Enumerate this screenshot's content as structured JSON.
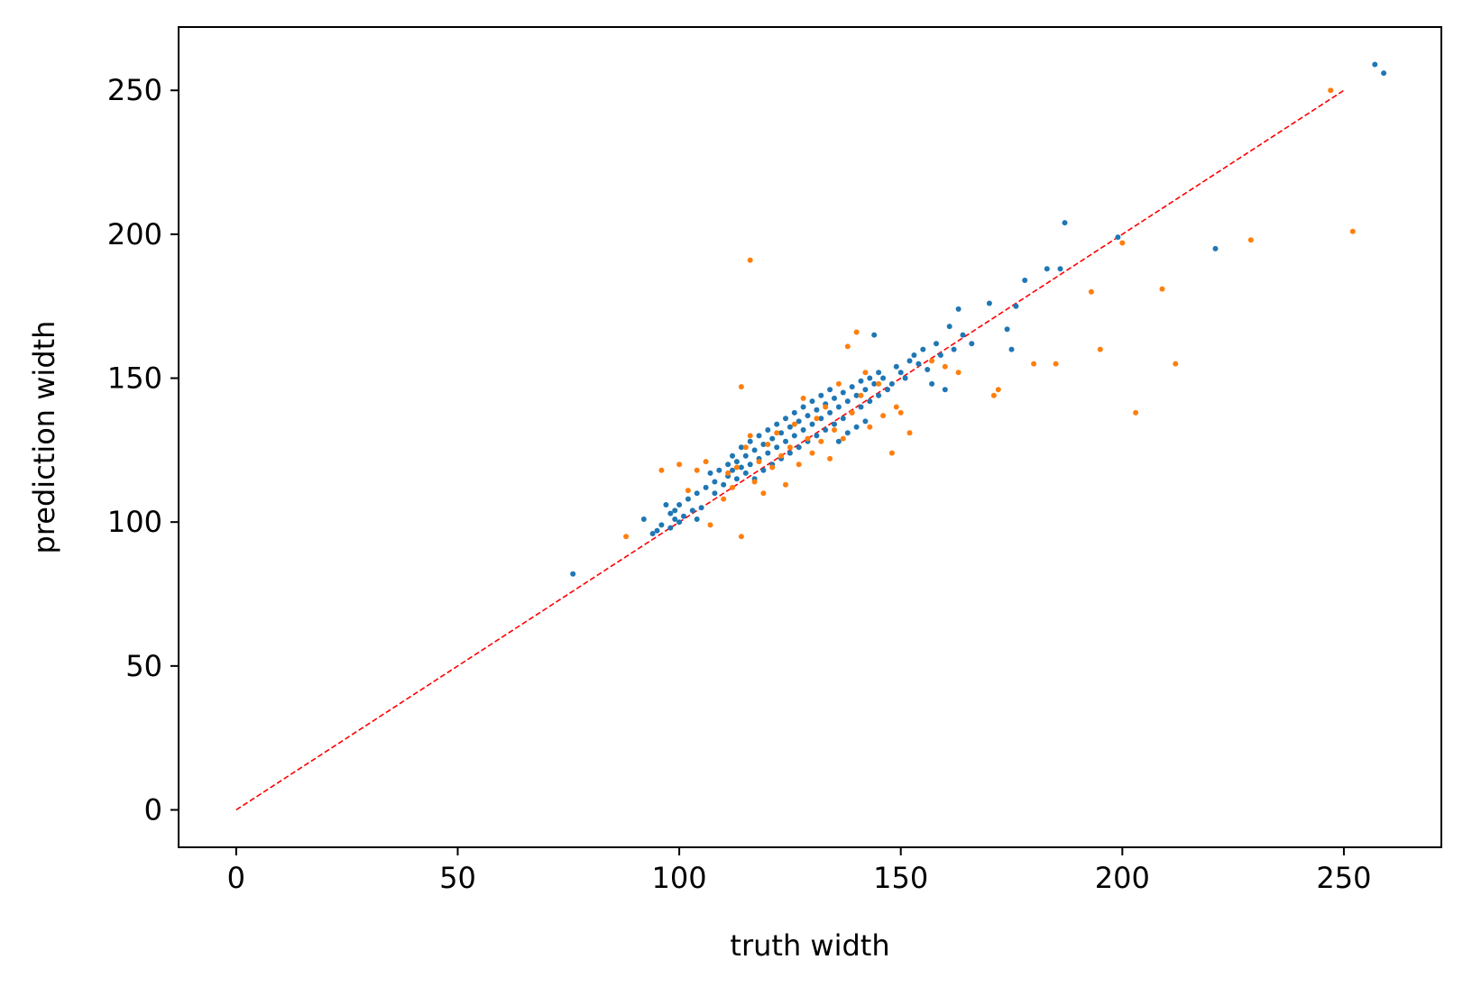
{
  "chart_data": {
    "type": "scatter",
    "title": "",
    "xlabel": "truth width",
    "ylabel": "prediction width",
    "xlim": [
      -13,
      272
    ],
    "ylim": [
      -13,
      272
    ],
    "xticks": [
      0,
      50,
      100,
      150,
      200,
      250
    ],
    "yticks": [
      0,
      50,
      100,
      150,
      200,
      250
    ],
    "grid": false,
    "legend": "none",
    "reference_line": {
      "x": [
        0,
        250
      ],
      "y": [
        0,
        250
      ],
      "color": "#ff0000",
      "style": "dashed"
    },
    "series": [
      {
        "color": "#1f77b4",
        "points": [
          [
            76,
            82
          ],
          [
            92,
            101
          ],
          [
            94,
            96
          ],
          [
            95,
            97
          ],
          [
            96,
            99
          ],
          [
            97,
            106
          ],
          [
            98,
            98
          ],
          [
            98,
            103
          ],
          [
            99,
            101
          ],
          [
            99,
            104
          ],
          [
            100,
            100
          ],
          [
            100,
            106
          ],
          [
            101,
            102
          ],
          [
            102,
            108
          ],
          [
            103,
            104
          ],
          [
            104,
            110
          ],
          [
            104,
            101
          ],
          [
            105,
            105
          ],
          [
            106,
            112
          ],
          [
            107,
            117
          ],
          [
            108,
            110
          ],
          [
            108,
            114
          ],
          [
            109,
            118
          ],
          [
            110,
            113
          ],
          [
            111,
            116
          ],
          [
            111,
            120
          ],
          [
            112,
            118
          ],
          [
            112,
            123
          ],
          [
            113,
            115
          ],
          [
            113,
            121
          ],
          [
            114,
            119
          ],
          [
            114,
            126
          ],
          [
            115,
            117
          ],
          [
            115,
            123
          ],
          [
            116,
            120
          ],
          [
            116,
            128
          ],
          [
            117,
            115
          ],
          [
            117,
            125
          ],
          [
            118,
            122
          ],
          [
            118,
            130
          ],
          [
            119,
            118
          ],
          [
            119,
            127
          ],
          [
            120,
            124
          ],
          [
            120,
            132
          ],
          [
            121,
            120
          ],
          [
            121,
            129
          ],
          [
            122,
            126
          ],
          [
            122,
            134
          ],
          [
            123,
            122
          ],
          [
            123,
            131
          ],
          [
            124,
            128
          ],
          [
            124,
            136
          ],
          [
            125,
            124
          ],
          [
            125,
            133
          ],
          [
            126,
            130
          ],
          [
            126,
            138
          ],
          [
            127,
            126
          ],
          [
            127,
            135
          ],
          [
            128,
            132
          ],
          [
            128,
            140
          ],
          [
            129,
            128
          ],
          [
            129,
            137
          ],
          [
            130,
            134
          ],
          [
            130,
            142
          ],
          [
            131,
            130
          ],
          [
            131,
            139
          ],
          [
            132,
            136
          ],
          [
            132,
            144
          ],
          [
            133,
            132
          ],
          [
            133,
            141
          ],
          [
            134,
            138
          ],
          [
            134,
            146
          ],
          [
            135,
            134
          ],
          [
            135,
            143
          ],
          [
            136,
            140
          ],
          [
            136,
            128
          ],
          [
            137,
            136
          ],
          [
            137,
            145
          ],
          [
            138,
            142
          ],
          [
            138,
            131
          ],
          [
            139,
            138
          ],
          [
            139,
            147
          ],
          [
            140,
            144
          ],
          [
            140,
            133
          ],
          [
            141,
            140
          ],
          [
            141,
            149
          ],
          [
            142,
            146
          ],
          [
            142,
            135
          ],
          [
            143,
            142
          ],
          [
            143,
            150
          ],
          [
            144,
            148
          ],
          [
            144,
            165
          ],
          [
            145,
            144
          ],
          [
            145,
            152
          ],
          [
            146,
            150
          ],
          [
            147,
            146
          ],
          [
            148,
            148
          ],
          [
            149,
            154
          ],
          [
            150,
            152
          ],
          [
            151,
            150
          ],
          [
            152,
            156
          ],
          [
            153,
            158
          ],
          [
            154,
            155
          ],
          [
            155,
            160
          ],
          [
            156,
            153
          ],
          [
            157,
            148
          ],
          [
            158,
            162
          ],
          [
            159,
            158
          ],
          [
            160,
            146
          ],
          [
            161,
            168
          ],
          [
            162,
            160
          ],
          [
            163,
            174
          ],
          [
            164,
            165
          ],
          [
            166,
            162
          ],
          [
            170,
            176
          ],
          [
            174,
            167
          ],
          [
            175,
            160
          ],
          [
            176,
            175
          ],
          [
            178,
            184
          ],
          [
            183,
            188
          ],
          [
            186,
            188
          ],
          [
            187,
            204
          ],
          [
            199,
            199
          ],
          [
            221,
            195
          ],
          [
            257,
            259
          ],
          [
            259,
            256
          ]
        ]
      },
      {
        "color": "#ff7f0e",
        "points": [
          [
            88,
            95
          ],
          [
            96,
            118
          ],
          [
            100,
            120
          ],
          [
            102,
            111
          ],
          [
            104,
            118
          ],
          [
            106,
            121
          ],
          [
            107,
            99
          ],
          [
            110,
            108
          ],
          [
            111,
            117
          ],
          [
            112,
            112
          ],
          [
            113,
            119
          ],
          [
            114,
            95
          ],
          [
            114,
            147
          ],
          [
            115,
            126
          ],
          [
            116,
            191
          ],
          [
            116,
            130
          ],
          [
            117,
            114
          ],
          [
            118,
            121
          ],
          [
            119,
            110
          ],
          [
            120,
            127
          ],
          [
            121,
            119
          ],
          [
            122,
            131
          ],
          [
            123,
            123
          ],
          [
            124,
            113
          ],
          [
            125,
            126
          ],
          [
            126,
            134
          ],
          [
            127,
            120
          ],
          [
            128,
            143
          ],
          [
            129,
            129
          ],
          [
            130,
            124
          ],
          [
            131,
            136
          ],
          [
            132,
            128
          ],
          [
            133,
            140
          ],
          [
            134,
            122
          ],
          [
            135,
            132
          ],
          [
            136,
            148
          ],
          [
            137,
            129
          ],
          [
            138,
            161
          ],
          [
            139,
            138
          ],
          [
            140,
            166
          ],
          [
            141,
            144
          ],
          [
            142,
            152
          ],
          [
            143,
            133
          ],
          [
            145,
            148
          ],
          [
            146,
            137
          ],
          [
            148,
            124
          ],
          [
            149,
            140
          ],
          [
            150,
            138
          ],
          [
            152,
            131
          ],
          [
            157,
            156
          ],
          [
            160,
            154
          ],
          [
            163,
            152
          ],
          [
            171,
            144
          ],
          [
            172,
            146
          ],
          [
            180,
            155
          ],
          [
            185,
            155
          ],
          [
            193,
            180
          ],
          [
            195,
            160
          ],
          [
            200,
            197
          ],
          [
            203,
            138
          ],
          [
            209,
            181
          ],
          [
            212,
            155
          ],
          [
            229,
            198
          ],
          [
            247,
            250
          ],
          [
            252,
            201
          ]
        ]
      }
    ]
  }
}
